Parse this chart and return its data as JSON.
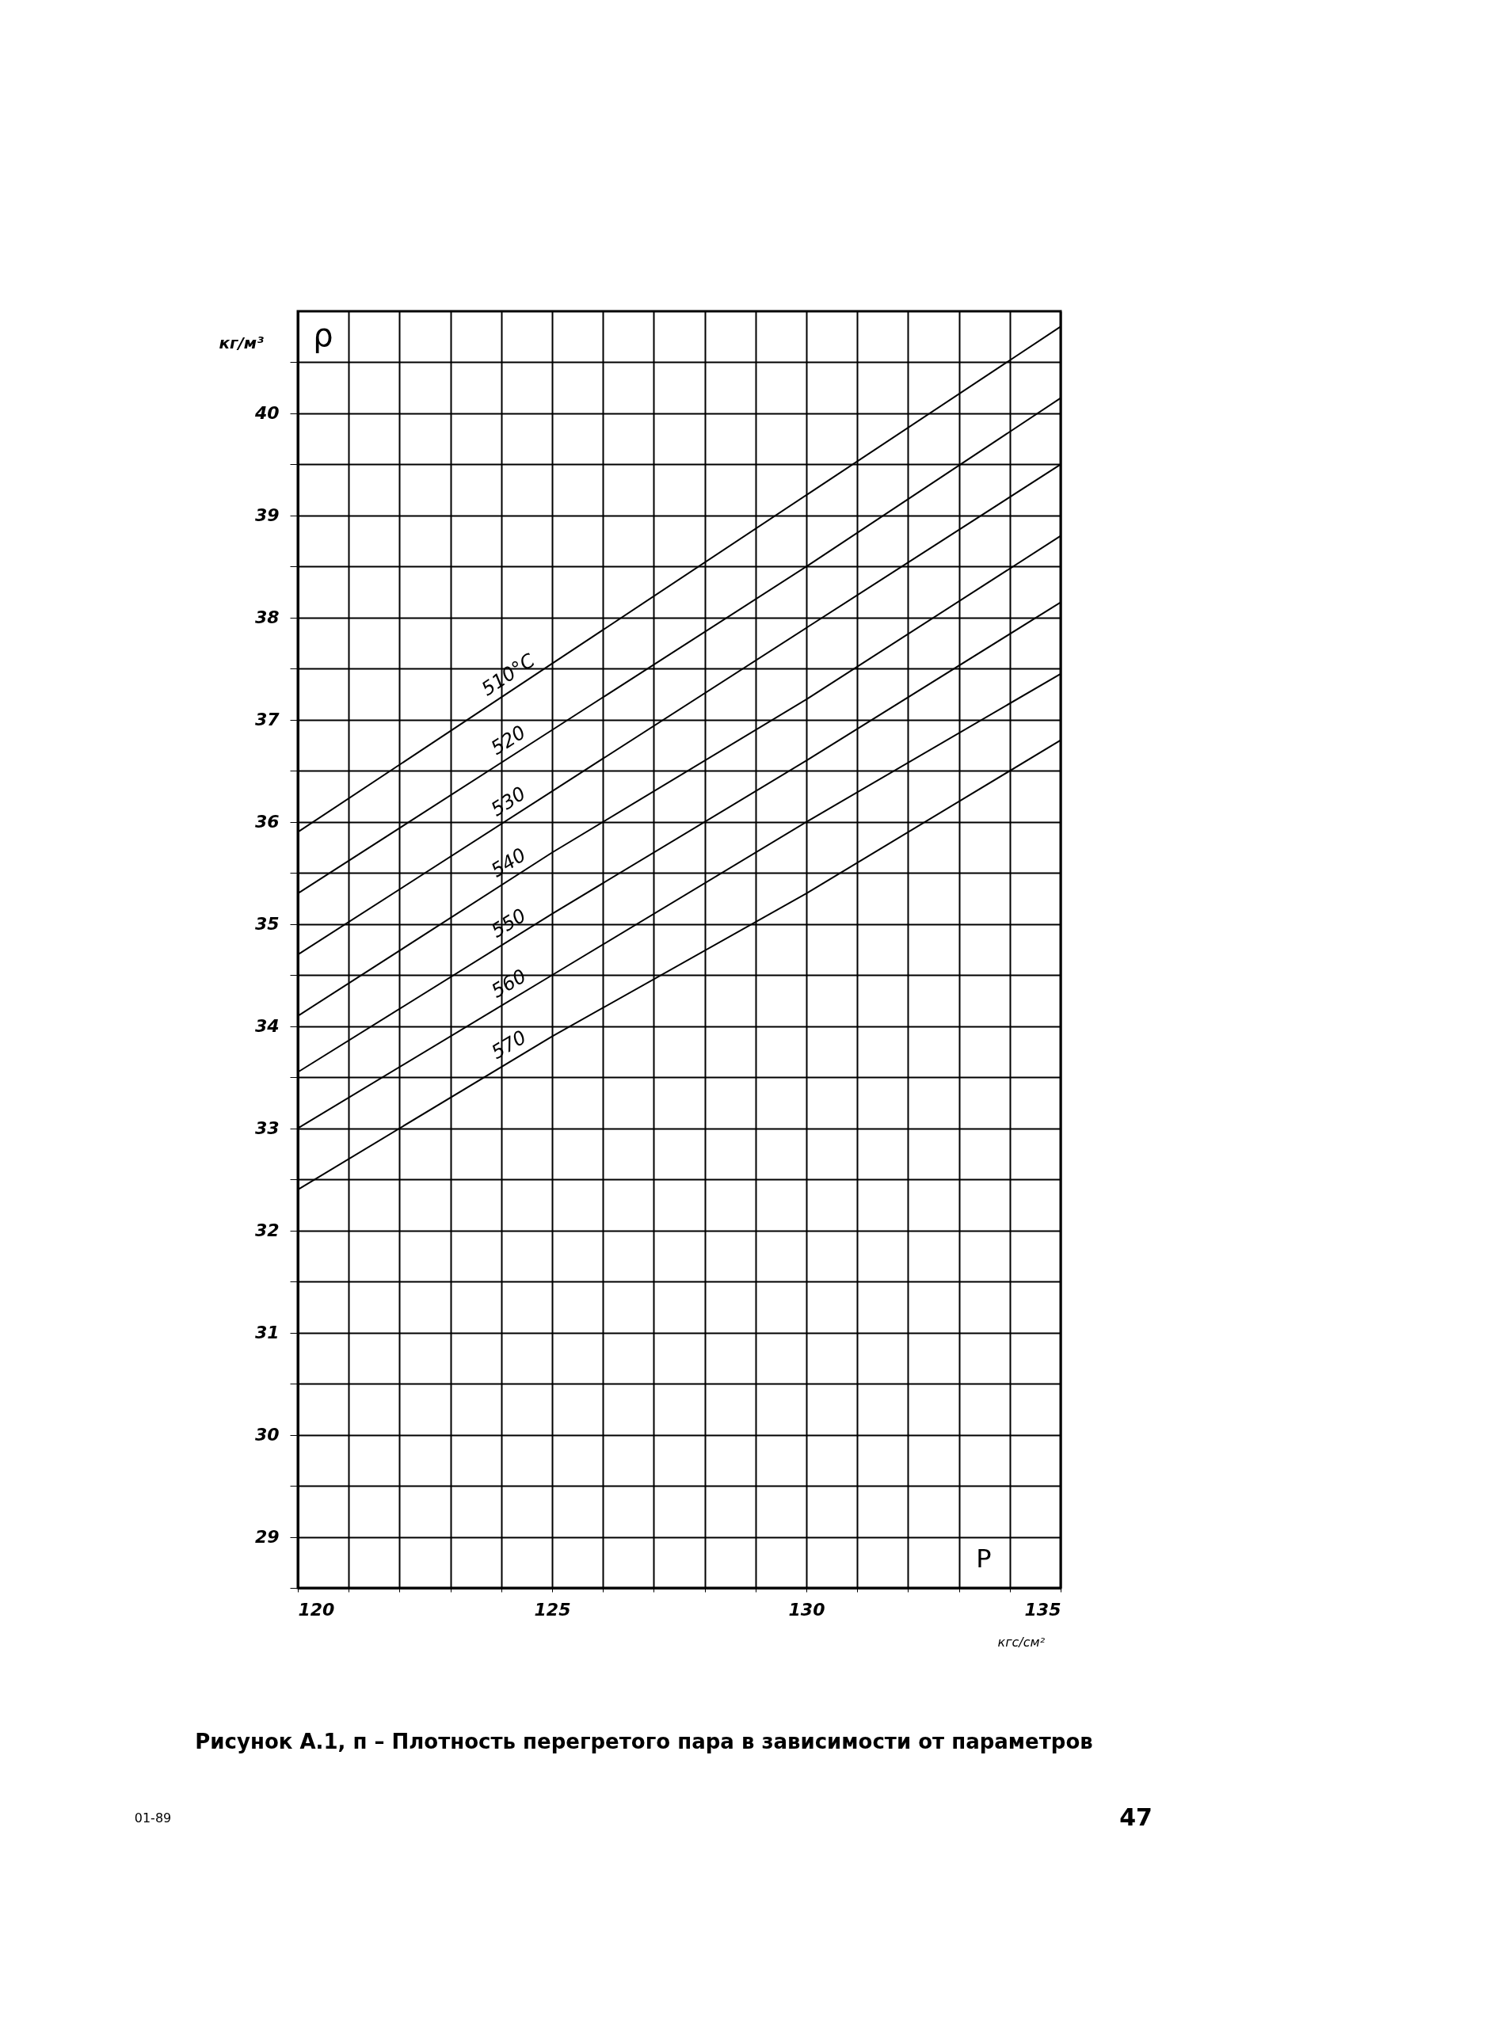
{
  "chart_data": {
    "type": "line",
    "title": "Рисунок А.1, п – Плотность перегретого пара в зависимости от параметров",
    "xlabel": "кгс/см²",
    "ylabel": "кг/м³",
    "x": [
      120,
      125,
      130,
      135
    ],
    "series": [
      {
        "name": "510°C",
        "color": "#000000",
        "values": [
          35.9,
          37.55,
          39.2,
          40.85
        ]
      },
      {
        "name": "520",
        "color": "#000000",
        "values": [
          35.3,
          36.9,
          38.5,
          40.15
        ]
      },
      {
        "name": "530",
        "color": "#000000",
        "values": [
          34.7,
          36.3,
          37.9,
          39.5
        ]
      },
      {
        "name": "540",
        "color": "#000000",
        "values": [
          34.1,
          35.7,
          37.2,
          38.8
        ]
      },
      {
        "name": "550",
        "color": "#000000",
        "values": [
          33.55,
          35.1,
          36.6,
          38.15
        ]
      },
      {
        "name": "560",
        "color": "#000000",
        "values": [
          33.0,
          34.5,
          36.0,
          37.45
        ]
      },
      {
        "name": "570",
        "color": "#000000",
        "values": [
          32.4,
          33.9,
          35.3,
          36.8
        ]
      }
    ],
    "xlim": [
      120,
      135
    ],
    "xticks": [
      120,
      {
        "value": 121,
        "label": null
      },
      {
        "value": 122,
        "label": null
      },
      {
        "value": 123,
        "label": null
      },
      {
        "value": 124,
        "label": null
      },
      125,
      {
        "value": 126,
        "label": null
      },
      {
        "value": 127,
        "label": null
      },
      {
        "value": 128,
        "label": null
      },
      {
        "value": 129,
        "label": null
      },
      130,
      {
        "value": 131,
        "label": null
      },
      {
        "value": 132,
        "label": null
      },
      {
        "value": 133,
        "label": null
      },
      {
        "value": 134,
        "label": null
      },
      135
    ],
    "ylim": [
      28.5,
      41
    ],
    "yticks": [
      {
        "value": 28.5,
        "label": null
      },
      29,
      {
        "value": 29.5,
        "label": null
      },
      30,
      {
        "value": 30.5,
        "label": null
      },
      31,
      {
        "value": 31.5,
        "label": null
      },
      32,
      {
        "value": 32.5,
        "label": null
      },
      33,
      {
        "value": 33.5,
        "label": null
      },
      34,
      {
        "value": 34.5,
        "label": null
      },
      35,
      {
        "value": 35.5,
        "label": null
      },
      36,
      {
        "value": 36.5,
        "label": null
      },
      37,
      {
        "value": 37.5,
        "label": null
      },
      38,
      {
        "value": 38.5,
        "label": null
      },
      39,
      {
        "value": 39.5,
        "label": null
      },
      40,
      {
        "value": 40.5,
        "label": null
      }
    ],
    "grid": true,
    "line_style": "solid",
    "marker": "none",
    "annotations": [
      "ρ",
      "P",
      "01-89",
      "47"
    ]
  }
}
